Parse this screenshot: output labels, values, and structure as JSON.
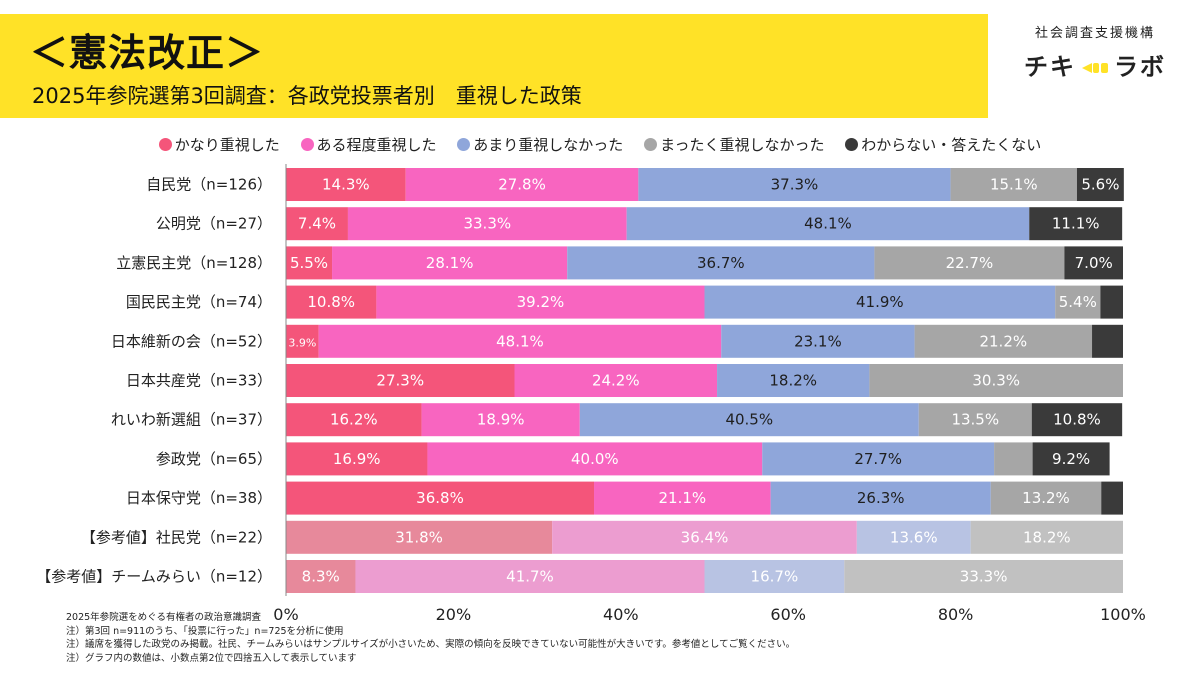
{
  "header": {
    "title": "＜憲法改正＞",
    "subtitle": "2025年参院選第3回調査：各政党投票者別　重視した政策"
  },
  "brand": {
    "org": "社会調査支援機構",
    "name_left": "チキ",
    "name_right": "ラボ"
  },
  "colors": {
    "band": "#ffe227",
    "series": [
      "#f4557a",
      "#f865c0",
      "#8fa6da",
      "#a6a6a6",
      "#3a3a3a"
    ],
    "series_muted": [
      "#e7899b",
      "#ec9dd0",
      "#b8c3e3",
      "#c1c1c1",
      "#777777"
    ]
  },
  "chart_data": {
    "type": "bar",
    "orientation": "horizontal",
    "stacked": true,
    "categories": [
      "自民党（n=126）",
      "公明党（n=27）",
      "立憲民主党（n=128）",
      "国民民主党（n=74）",
      "日本維新の会（n=52）",
      "日本共産党（n=33）",
      "れいわ新選組（n=37）",
      "参政党（n=65）",
      "日本保守党（n=38）",
      "【参考値】社民党（n=22）",
      "【参考値】チームみらい（n=12）"
    ],
    "reference_categories": [
      9,
      10
    ],
    "series": [
      {
        "name": "かなり重視した",
        "values": [
          14.3,
          7.4,
          5.5,
          10.8,
          3.9,
          27.3,
          16.2,
          16.9,
          36.8,
          31.8,
          8.3
        ]
      },
      {
        "name": "ある程度重視した",
        "values": [
          27.8,
          33.3,
          28.1,
          39.2,
          48.1,
          24.2,
          18.9,
          40.0,
          21.1,
          36.4,
          41.7
        ]
      },
      {
        "name": "あまり重視しなかった",
        "values": [
          37.3,
          48.1,
          36.7,
          41.9,
          23.1,
          18.2,
          40.5,
          27.7,
          26.3,
          13.6,
          16.7
        ]
      },
      {
        "name": "まったく重視しなかった",
        "values": [
          15.1,
          0,
          22.7,
          5.4,
          21.2,
          30.3,
          13.5,
          4.6,
          13.2,
          18.2,
          33.3
        ]
      },
      {
        "name": "わからない・答えたくない",
        "values": [
          5.6,
          11.1,
          7.0,
          2.7,
          3.7,
          0,
          10.8,
          9.2,
          2.6,
          0,
          0
        ]
      }
    ],
    "labels": [
      [
        "14.3%",
        "27.8%",
        "37.3%",
        "15.1%",
        "5.6%"
      ],
      [
        "7.4%",
        "33.3%",
        "48.1%",
        "",
        "11.1%"
      ],
      [
        "5.5%",
        "28.1%",
        "36.7%",
        "22.7%",
        "7.0%"
      ],
      [
        "10.8%",
        "39.2%",
        "41.9%",
        "5.4%",
        ""
      ],
      [
        "3.9%",
        "48.1%",
        "23.1%",
        "21.2%",
        ""
      ],
      [
        "27.3%",
        "24.2%",
        "18.2%",
        "30.3%",
        ""
      ],
      [
        "16.2%",
        "18.9%",
        "40.5%",
        "13.5%",
        "10.8%"
      ],
      [
        "16.9%",
        "40.0%",
        "27.7%",
        "",
        "9.2%"
      ],
      [
        "36.8%",
        "21.1%",
        "26.3%",
        "13.2%",
        ""
      ],
      [
        "31.8%",
        "36.4%",
        "13.6%",
        "18.2%",
        ""
      ],
      [
        "8.3%",
        "41.7%",
        "16.7%",
        "33.3%",
        ""
      ]
    ],
    "x_ticks": [
      "0%",
      "20%",
      "40%",
      "60%",
      "80%",
      "100%"
    ],
    "xlim": [
      0,
      100
    ],
    "legend_position": "top"
  },
  "notes": [
    "2025年参院選をめぐる有権者の政治意識調査",
    "注）第3回 n=911のうち、「投票に行った」n=725を分析に使用",
    "注）議席を獲得した政党のみ掲載。社民、チームみらいはサンプルサイズが小さいため、実際の傾向を反映できていない可能性が大きいです。参考値としてご覧ください。",
    "注）グラフ内の数値は、小数点第2位で四捨五入して表示しています"
  ]
}
